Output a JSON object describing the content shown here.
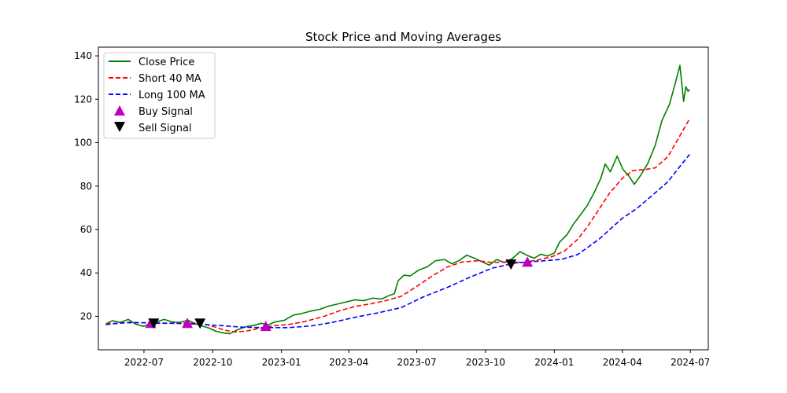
{
  "chart_data": {
    "type": "line",
    "title": "Stock Price and Moving Averages",
    "xlabel": "",
    "ylabel": "",
    "xlim": [
      "2022-05-01",
      "2024-07-25"
    ],
    "ylim": [
      4.6,
      144.0
    ],
    "x_ticks": [
      {
        "date": "2022-07-01",
        "label": "2022-07"
      },
      {
        "date": "2022-10-01",
        "label": "2022-10"
      },
      {
        "date": "2023-01-01",
        "label": "2023-01"
      },
      {
        "date": "2023-04-01",
        "label": "2023-04"
      },
      {
        "date": "2023-07-01",
        "label": "2023-07"
      },
      {
        "date": "2023-10-01",
        "label": "2023-10"
      },
      {
        "date": "2024-01-01",
        "label": "2024-01"
      },
      {
        "date": "2024-04-01",
        "label": "2024-04"
      },
      {
        "date": "2024-07-01",
        "label": "2024-07"
      }
    ],
    "y_ticks": [
      {
        "value": 20,
        "label": "20"
      },
      {
        "value": 40,
        "label": "40"
      },
      {
        "value": 60,
        "label": "60"
      },
      {
        "value": 80,
        "label": "80"
      },
      {
        "value": 100,
        "label": "100"
      },
      {
        "value": 120,
        "label": "120"
      },
      {
        "value": 140,
        "label": "140"
      }
    ],
    "grid": false,
    "legend": {
      "placement": "top-left"
    },
    "series": [
      {
        "name": "Close Price",
        "color": "#008000",
        "style": "solid",
        "points": [
          [
            "2022-05-11",
            16.5
          ],
          [
            "2022-05-20",
            18.0
          ],
          [
            "2022-05-30",
            17.2
          ],
          [
            "2022-06-10",
            18.6
          ],
          [
            "2022-06-20",
            16.4
          ],
          [
            "2022-06-30",
            15.4
          ],
          [
            "2022-07-08",
            16.2
          ],
          [
            "2022-07-18",
            17.5
          ],
          [
            "2022-07-28",
            18.6
          ],
          [
            "2022-08-08",
            17.4
          ],
          [
            "2022-08-18",
            17.2
          ],
          [
            "2022-08-29",
            18.2
          ],
          [
            "2022-09-08",
            16.6
          ],
          [
            "2022-09-16",
            15.6
          ],
          [
            "2022-09-26",
            14.6
          ],
          [
            "2022-10-05",
            13.2
          ],
          [
            "2022-10-14",
            12.4
          ],
          [
            "2022-10-24",
            12.0
          ],
          [
            "2022-11-03",
            13.8
          ],
          [
            "2022-11-14",
            15.2
          ],
          [
            "2022-11-25",
            15.8
          ],
          [
            "2022-12-05",
            16.8
          ],
          [
            "2022-12-14",
            16.0
          ],
          [
            "2022-12-23",
            17.4
          ],
          [
            "2023-01-05",
            18.2
          ],
          [
            "2023-01-17",
            20.6
          ],
          [
            "2023-01-27",
            21.2
          ],
          [
            "2023-02-09",
            22.4
          ],
          [
            "2023-02-21",
            23.2
          ],
          [
            "2023-03-04",
            24.6
          ],
          [
            "2023-03-16",
            25.6
          ],
          [
            "2023-03-28",
            26.6
          ],
          [
            "2023-04-09",
            27.6
          ],
          [
            "2023-04-21",
            27.2
          ],
          [
            "2023-05-03",
            28.4
          ],
          [
            "2023-05-15",
            28.0
          ],
          [
            "2023-05-25",
            29.6
          ],
          [
            "2023-06-01",
            30.4
          ],
          [
            "2023-06-06",
            36.4
          ],
          [
            "2023-06-14",
            39.0
          ],
          [
            "2023-06-22",
            38.6
          ],
          [
            "2023-07-03",
            41.2
          ],
          [
            "2023-07-15",
            42.8
          ],
          [
            "2023-07-26",
            45.6
          ],
          [
            "2023-08-07",
            46.2
          ],
          [
            "2023-08-17",
            44.2
          ],
          [
            "2023-08-27",
            45.8
          ],
          [
            "2023-09-06",
            48.2
          ],
          [
            "2023-09-16",
            46.8
          ],
          [
            "2023-09-26",
            45.2
          ],
          [
            "2023-10-06",
            43.6
          ],
          [
            "2023-10-16",
            46.2
          ],
          [
            "2023-10-26",
            44.8
          ],
          [
            "2023-11-06",
            46.6
          ],
          [
            "2023-11-16",
            49.8
          ],
          [
            "2023-11-25",
            48.2
          ],
          [
            "2023-12-05",
            46.8
          ],
          [
            "2023-12-14",
            48.6
          ],
          [
            "2023-12-23",
            47.8
          ],
          [
            "2024-01-01",
            49.2
          ],
          [
            "2024-01-08",
            54.2
          ],
          [
            "2024-01-18",
            57.6
          ],
          [
            "2024-01-26",
            62.2
          ],
          [
            "2024-02-05",
            66.8
          ],
          [
            "2024-02-14",
            71.0
          ],
          [
            "2024-02-23",
            76.8
          ],
          [
            "2024-03-03",
            83.4
          ],
          [
            "2024-03-09",
            90.2
          ],
          [
            "2024-03-16",
            86.6
          ],
          [
            "2024-03-25",
            93.8
          ],
          [
            "2024-04-02",
            87.6
          ],
          [
            "2024-04-10",
            84.6
          ],
          [
            "2024-04-17",
            80.8
          ],
          [
            "2024-04-26",
            85.2
          ],
          [
            "2024-05-05",
            90.4
          ],
          [
            "2024-05-15",
            98.8
          ],
          [
            "2024-05-24",
            110.2
          ],
          [
            "2024-06-03",
            117.6
          ],
          [
            "2024-06-11",
            127.6
          ],
          [
            "2024-06-17",
            135.6
          ],
          [
            "2024-06-22",
            119.0
          ],
          [
            "2024-06-25",
            125.8
          ],
          [
            "2024-06-28",
            123.6
          ],
          [
            "2024-06-30",
            124.6
          ]
        ]
      },
      {
        "name": "Short 40 MA",
        "color": "#ff0000",
        "style": "dashed",
        "points": [
          [
            "2022-05-11",
            16.6
          ],
          [
            "2022-06-05",
            17.0
          ],
          [
            "2022-07-01",
            17.0
          ],
          [
            "2022-07-20",
            16.8
          ],
          [
            "2022-08-10",
            16.8
          ],
          [
            "2022-09-01",
            17.0
          ],
          [
            "2022-09-20",
            16.4
          ],
          [
            "2022-10-05",
            15.0
          ],
          [
            "2022-10-15",
            13.8
          ],
          [
            "2022-10-30",
            12.8
          ],
          [
            "2022-11-15",
            13.2
          ],
          [
            "2022-12-01",
            14.4
          ],
          [
            "2022-12-20",
            15.6
          ],
          [
            "2023-01-10",
            16.2
          ],
          [
            "2023-02-01",
            17.6
          ],
          [
            "2023-02-25",
            19.8
          ],
          [
            "2023-03-20",
            22.6
          ],
          [
            "2023-04-10",
            24.6
          ],
          [
            "2023-05-01",
            25.8
          ],
          [
            "2023-05-20",
            27.2
          ],
          [
            "2023-06-10",
            29.2
          ],
          [
            "2023-06-30",
            33.6
          ],
          [
            "2023-07-20",
            38.2
          ],
          [
            "2023-08-10",
            42.6
          ],
          [
            "2023-08-30",
            45.0
          ],
          [
            "2023-09-20",
            45.6
          ],
          [
            "2023-10-10",
            44.8
          ],
          [
            "2023-10-30",
            45.0
          ],
          [
            "2023-11-20",
            44.8
          ],
          [
            "2023-12-10",
            46.0
          ],
          [
            "2023-12-30",
            47.6
          ],
          [
            "2024-01-15",
            50.2
          ],
          [
            "2024-02-01",
            55.4
          ],
          [
            "2024-02-15",
            61.6
          ],
          [
            "2024-03-01",
            69.4
          ],
          [
            "2024-03-15",
            76.8
          ],
          [
            "2024-04-01",
            83.6
          ],
          [
            "2024-04-15",
            87.2
          ],
          [
            "2024-05-01",
            87.6
          ],
          [
            "2024-05-15",
            88.4
          ],
          [
            "2024-06-01",
            93.6
          ],
          [
            "2024-06-15",
            102.0
          ],
          [
            "2024-06-30",
            111.0
          ]
        ]
      },
      {
        "name": "Long 100 MA",
        "color": "#0000ff",
        "style": "dashed",
        "points": [
          [
            "2022-05-11",
            16.2
          ],
          [
            "2022-06-10",
            17.2
          ],
          [
            "2022-07-10",
            17.0
          ],
          [
            "2022-08-10",
            16.8
          ],
          [
            "2022-09-10",
            16.4
          ],
          [
            "2022-10-10",
            15.8
          ],
          [
            "2022-11-10",
            15.0
          ],
          [
            "2022-12-10",
            14.8
          ],
          [
            "2023-01-10",
            14.8
          ],
          [
            "2023-02-10",
            15.6
          ],
          [
            "2023-03-10",
            17.2
          ],
          [
            "2023-04-10",
            19.6
          ],
          [
            "2023-05-10",
            21.6
          ],
          [
            "2023-06-10",
            24.0
          ],
          [
            "2023-07-10",
            29.0
          ],
          [
            "2023-08-10",
            33.2
          ],
          [
            "2023-09-10",
            38.0
          ],
          [
            "2023-10-10",
            42.2
          ],
          [
            "2023-11-10",
            44.6
          ],
          [
            "2023-12-10",
            45.4
          ],
          [
            "2024-01-10",
            46.2
          ],
          [
            "2024-02-01",
            48.4
          ],
          [
            "2024-03-01",
            55.6
          ],
          [
            "2024-04-01",
            65.2
          ],
          [
            "2024-04-20",
            69.6
          ],
          [
            "2024-05-10",
            75.4
          ],
          [
            "2024-06-01",
            82.0
          ],
          [
            "2024-06-15",
            88.2
          ],
          [
            "2024-06-30",
            94.6
          ]
        ]
      }
    ],
    "signals": {
      "buy": {
        "name": "Buy Signal",
        "color": "#bf00bf",
        "marker": "triangle-up",
        "points": [
          [
            "2022-07-10",
            16.8
          ],
          [
            "2022-08-28",
            16.8
          ],
          [
            "2022-12-11",
            15.4
          ],
          [
            "2023-11-26",
            45.0
          ]
        ]
      },
      "sell": {
        "name": "Sell Signal",
        "color": "#000000",
        "marker": "triangle-down",
        "points": [
          [
            "2022-07-14",
            16.8
          ],
          [
            "2022-09-14",
            16.8
          ],
          [
            "2023-11-04",
            44.0
          ]
        ]
      }
    }
  }
}
